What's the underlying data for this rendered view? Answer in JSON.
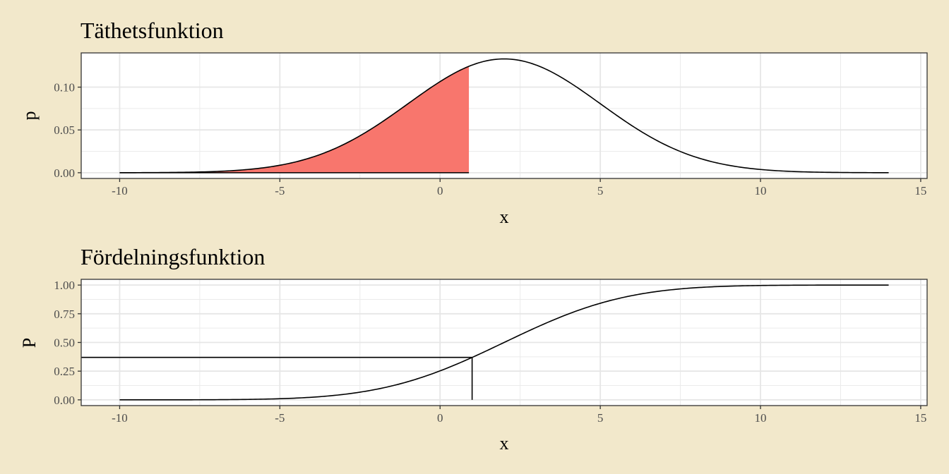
{
  "chart_data": [
    {
      "type": "area",
      "title": "Täthetsfunktion",
      "xlabel": "x",
      "ylabel": "p",
      "xlim": [
        -11.2,
        15.2
      ],
      "ylim": [
        -0.0067,
        0.14
      ],
      "x_ticks": [
        -10,
        -5,
        0,
        5,
        10,
        15
      ],
      "x_tick_labels": [
        "-10",
        "-5",
        "0",
        "5",
        "10",
        "15"
      ],
      "y_ticks": [
        0,
        0.05,
        0.1
      ],
      "y_tick_labels": [
        "0.00",
        "0.05",
        "0.10"
      ],
      "grid": true,
      "series": [
        {
          "kind": "normal_density",
          "mean": 2,
          "sd": 3,
          "x_range": [
            -10,
            14
          ]
        }
      ],
      "shaded_region": {
        "from": -10,
        "to": 0.9,
        "color": "#f8766d"
      }
    },
    {
      "type": "line",
      "title": "Fördelningsfunktion",
      "xlabel": "x",
      "ylabel": "P",
      "xlim": [
        -11.2,
        15.2
      ],
      "ylim": [
        -0.05,
        1.05
      ],
      "x_ticks": [
        -10,
        -5,
        0,
        5,
        10,
        15
      ],
      "x_tick_labels": [
        "-10",
        "-5",
        "0",
        "5",
        "10",
        "15"
      ],
      "y_ticks": [
        0,
        0.25,
        0.5,
        0.75,
        1
      ],
      "y_tick_labels": [
        "0.00",
        "0.25",
        "0.50",
        "0.75",
        "1.00"
      ],
      "grid": true,
      "series": [
        {
          "kind": "normal_cdf",
          "mean": 2,
          "sd": 3,
          "x_range": [
            -10,
            14
          ]
        }
      ],
      "reference_lines": {
        "x": 1,
        "y": 0.37
      }
    }
  ]
}
